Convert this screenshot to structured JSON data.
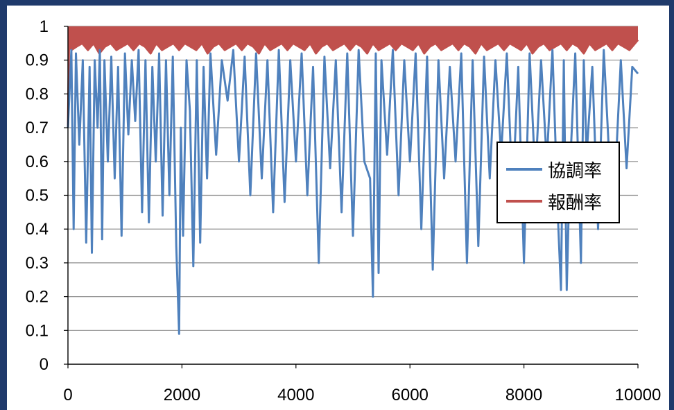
{
  "chart_data": {
    "type": "line",
    "title": "",
    "xlabel": "",
    "ylabel": "",
    "xlim": [
      0,
      10000
    ],
    "ylim": [
      0,
      1
    ],
    "x_ticks": [
      "0",
      "2000",
      "4000",
      "6000",
      "8000",
      "10000"
    ],
    "y_ticks": [
      "0",
      "0.1",
      "0.2",
      "0.3",
      "0.4",
      "0.5",
      "0.6",
      "0.7",
      "0.8",
      "0.9",
      "1"
    ],
    "grid": "horizontal",
    "legend_position": "right",
    "colors": {
      "coordination": "#4f81bd",
      "reward": "#c0504d"
    },
    "series": [
      {
        "name": "協調率",
        "x": [
          0,
          60,
          100,
          140,
          200,
          260,
          320,
          380,
          420,
          470,
          520,
          560,
          600,
          640,
          700,
          760,
          820,
          880,
          940,
          1000,
          1060,
          1120,
          1180,
          1240,
          1300,
          1360,
          1420,
          1480,
          1540,
          1600,
          1660,
          1720,
          1780,
          1840,
          1900,
          1950,
          1980,
          2020,
          2080,
          2140,
          2200,
          2260,
          2320,
          2380,
          2440,
          2500,
          2600,
          2700,
          2800,
          2900,
          3000,
          3100,
          3200,
          3300,
          3400,
          3500,
          3600,
          3700,
          3800,
          3900,
          4000,
          4100,
          4200,
          4300,
          4400,
          4500,
          4600,
          4700,
          4800,
          4900,
          5000,
          5100,
          5200,
          5300,
          5350,
          5400,
          5450,
          5500,
          5600,
          5700,
          5800,
          5900,
          6000,
          6100,
          6200,
          6300,
          6400,
          6500,
          6600,
          6700,
          6800,
          6900,
          7000,
          7100,
          7200,
          7300,
          7400,
          7500,
          7600,
          7700,
          7800,
          7900,
          8000,
          8100,
          8200,
          8300,
          8400,
          8500,
          8600,
          8650,
          8700,
          8750,
          8800,
          8900,
          9000,
          9050,
          9100,
          9200,
          9300,
          9400,
          9500,
          9600,
          9700,
          9800,
          9900,
          10000
        ],
        "values": [
          0.7,
          0.93,
          0.4,
          0.92,
          0.65,
          0.9,
          0.36,
          0.88,
          0.33,
          0.9,
          0.7,
          0.93,
          0.37,
          0.9,
          0.6,
          0.91,
          0.55,
          0.88,
          0.38,
          0.92,
          0.68,
          0.9,
          0.72,
          0.93,
          0.45,
          0.9,
          0.42,
          0.88,
          0.6,
          0.92,
          0.44,
          0.9,
          0.5,
          0.91,
          0.35,
          0.09,
          0.7,
          0.38,
          0.9,
          0.75,
          0.29,
          0.9,
          0.36,
          0.88,
          0.55,
          0.92,
          0.62,
          0.9,
          0.78,
          0.93,
          0.6,
          0.91,
          0.5,
          0.92,
          0.55,
          0.9,
          0.45,
          0.93,
          0.48,
          0.9,
          0.6,
          0.92,
          0.5,
          0.88,
          0.3,
          0.91,
          0.58,
          0.9,
          0.45,
          0.92,
          0.38,
          0.93,
          0.6,
          0.55,
          0.2,
          0.92,
          0.27,
          0.9,
          0.62,
          0.93,
          0.5,
          0.9,
          0.6,
          0.92,
          0.4,
          0.91,
          0.28,
          0.9,
          0.55,
          0.88,
          0.6,
          0.92,
          0.3,
          0.9,
          0.35,
          0.91,
          0.55,
          0.9,
          0.62,
          0.92,
          0.5,
          0.88,
          0.3,
          0.92,
          0.55,
          0.9,
          0.6,
          0.93,
          0.42,
          0.22,
          0.9,
          0.22,
          0.55,
          0.92,
          0.3,
          0.9,
          0.62,
          0.88,
          0.4,
          0.93,
          0.6,
          0.55,
          0.9,
          0.58,
          0.88,
          0.86
        ]
      },
      {
        "name": "報酬率",
        "x": [
          0,
          20,
          60,
          150,
          250,
          350,
          450,
          550,
          650,
          750,
          850,
          950,
          1050,
          1150,
          1250,
          1350,
          1450,
          1550,
          1650,
          1750,
          1850,
          1950,
          2050,
          2150,
          2250,
          2350,
          2450,
          2550,
          2650,
          2750,
          2850,
          2950,
          3050,
          3150,
          3250,
          3350,
          3450,
          3550,
          3650,
          3750,
          3850,
          3950,
          4050,
          4150,
          4250,
          4350,
          4450,
          4550,
          4650,
          4750,
          4850,
          4950,
          5050,
          5150,
          5250,
          5350,
          5450,
          5550,
          5650,
          5750,
          5850,
          5950,
          6050,
          6150,
          6250,
          6350,
          6450,
          6550,
          6650,
          6750,
          6850,
          6950,
          7050,
          7150,
          7250,
          7350,
          7450,
          7550,
          7650,
          7750,
          7850,
          7950,
          8050,
          8150,
          8250,
          8350,
          8450,
          8550,
          8650,
          8750,
          8850,
          8950,
          9050,
          9150,
          9250,
          9350,
          9450,
          9550,
          9650,
          9750,
          9850,
          9950,
          10000
        ],
        "values": [
          0.7,
          0.95,
          0.93,
          0.94,
          0.95,
          0.93,
          0.95,
          0.92,
          0.94,
          0.95,
          0.93,
          0.94,
          0.95,
          0.93,
          0.95,
          0.94,
          0.92,
          0.95,
          0.93,
          0.94,
          0.95,
          0.93,
          0.95,
          0.94,
          0.93,
          0.95,
          0.92,
          0.94,
          0.95,
          0.93,
          0.94,
          0.95,
          0.93,
          0.95,
          0.94,
          0.92,
          0.95,
          0.93,
          0.94,
          0.95,
          0.93,
          0.95,
          0.94,
          0.93,
          0.95,
          0.92,
          0.94,
          0.95,
          0.93,
          0.94,
          0.95,
          0.93,
          0.95,
          0.94,
          0.92,
          0.95,
          0.93,
          0.94,
          0.95,
          0.93,
          0.95,
          0.94,
          0.93,
          0.95,
          0.92,
          0.94,
          0.95,
          0.93,
          0.94,
          0.95,
          0.93,
          0.95,
          0.94,
          0.92,
          0.95,
          0.93,
          0.94,
          0.95,
          0.93,
          0.95,
          0.94,
          0.93,
          0.95,
          0.92,
          0.94,
          0.95,
          0.93,
          0.94,
          0.95,
          0.93,
          0.95,
          0.94,
          0.92,
          0.95,
          0.93,
          0.94,
          0.95,
          0.93,
          0.95,
          0.94,
          0.93,
          0.95,
          0.96
        ]
      }
    ]
  }
}
